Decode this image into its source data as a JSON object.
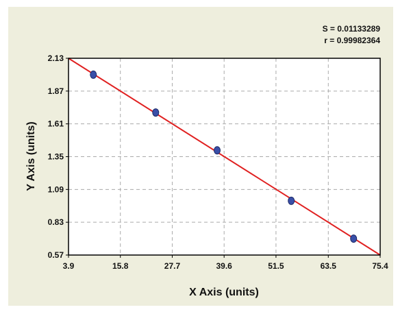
{
  "chart_data": {
    "type": "scatter",
    "annotations": [
      "S = 0.01133289",
      "r = 0.99982364"
    ],
    "xlabel": "X Axis (units)",
    "ylabel": "Y Axis (units)",
    "series": [
      {
        "color": "#3a4fa8",
        "x": [
          9.6,
          23.9,
          38.0,
          55.0,
          69.3
        ],
        "values": [
          2.0,
          1.7,
          1.4,
          1.0,
          0.7
        ]
      }
    ],
    "fit_line": {
      "color": "#e02020",
      "x": [
        3.9,
        75.4
      ],
      "values": [
        2.13,
        0.57
      ]
    },
    "xlim": [
      3.9,
      75.4
    ],
    "xticks": [
      3.9,
      15.8,
      27.7,
      39.6,
      51.5,
      63.5,
      75.4
    ],
    "ylim": [
      0.57,
      2.13
    ],
    "yticks": [
      0.57,
      0.83,
      1.09,
      1.35,
      1.61,
      1.87,
      2.13
    ],
    "grid": true
  }
}
